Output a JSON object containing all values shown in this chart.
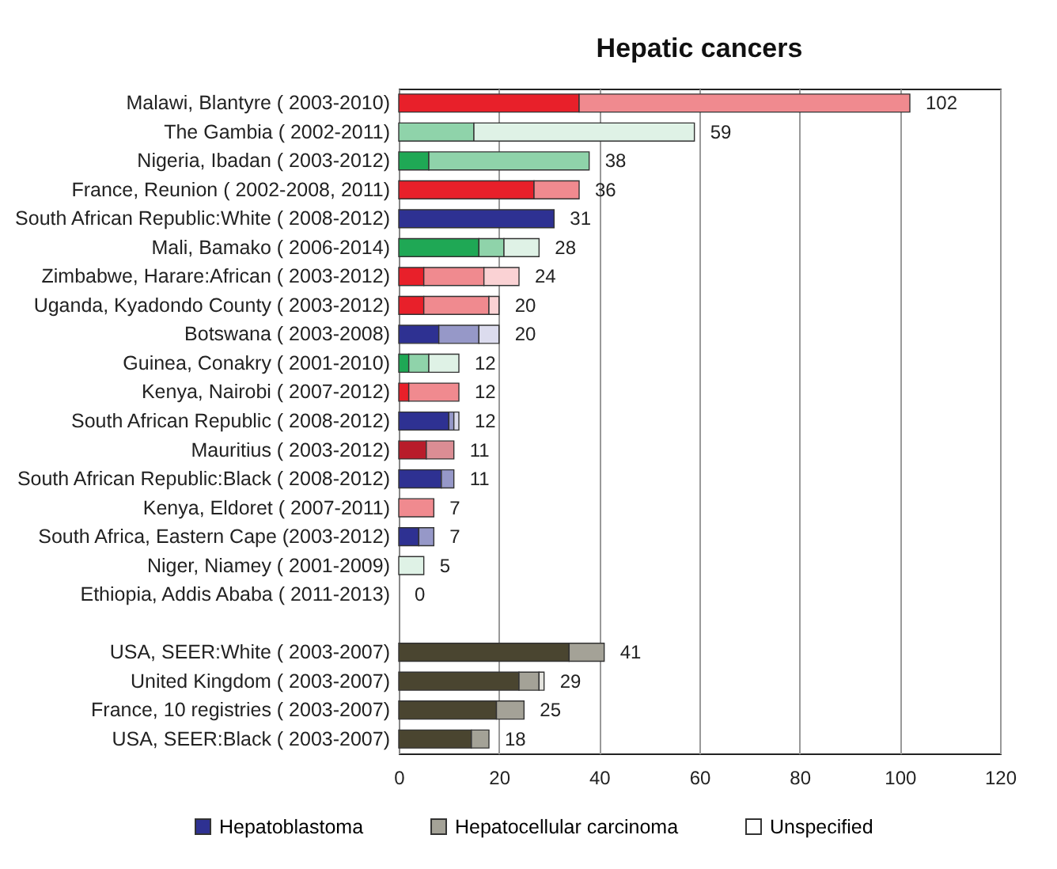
{
  "chart_data": {
    "type": "bar",
    "orientation": "horizontal",
    "stacked": true,
    "title": "Hepatic cancers",
    "categories": [
      "Malawi, Blantyre ( 2003-2010)",
      "The Gambia ( 2002-2011)",
      "Nigeria, Ibadan ( 2003-2012)",
      "France, Reunion ( 2002-2008,  2011)",
      "South African Republic:White ( 2008-2012)",
      "Mali, Bamako ( 2006-2014)",
      "Zimbabwe, Harare:African ( 2003-2012)",
      "Uganda, Kyadondo County ( 2003-2012)",
      "Botswana ( 2003-2008)",
      "Guinea, Conakry ( 2001-2010)",
      "Kenya, Nairobi ( 2007-2012)",
      "South African Republic ( 2008-2012)",
      "Mauritius ( 2003-2012)",
      "South African Republic:Black ( 2008-2012)",
      "Kenya, Eldoret ( 2007-2011)",
      "South Africa, Eastern Cape (2003-2012)",
      "Niger, Niamey ( 2001-2009)",
      "Ethiopia, Addis Ababa ( 2011-2013)",
      null,
      "USA, SEER:White ( 2003-2007)",
      "United Kingdom ( 2003-2007)",
      "France, 10 registries ( 2003-2007)",
      "USA, SEER:Black ( 2003-2007)"
    ],
    "series": [
      {
        "name": "Hepatoblastoma",
        "color": "#2e3192",
        "colors": [
          "#e8202a",
          null,
          "#1fa855",
          "#e8202a",
          "#2e3192",
          "#1fa855",
          "#e8202a",
          "#e8202a",
          "#2e3192",
          "#1fa855",
          "#e8202a",
          "#2e3192",
          "#b81c2a",
          "#2e3192",
          null,
          "#2e3192",
          null,
          null,
          null,
          "#4a4530",
          "#4a4530",
          "#4a4530",
          "#4a4530"
        ],
        "values": [
          36,
          0,
          6,
          27,
          31,
          16,
          5,
          5,
          8,
          2,
          2,
          10,
          5.5,
          8.5,
          0,
          4,
          0,
          0,
          null,
          34,
          24,
          19.5,
          14.5
        ]
      },
      {
        "name": "Hepatocellular carcinoma",
        "color": "#a4a297",
        "colors": [
          "#f08a8f",
          "#8fd3aa",
          "#8fd3aa",
          "#f08a8f",
          null,
          "#8fd3aa",
          "#f08a8f",
          "#f08a8f",
          "#9698c8",
          "#8fd3aa",
          "#f08a8f",
          "#9698c8",
          "#db8d94",
          "#9698c8",
          "#f08a8f",
          "#9698c8",
          null,
          null,
          null,
          "#a4a297",
          "#a4a297",
          "#a4a297",
          "#a4a297"
        ],
        "values": [
          66,
          15,
          32,
          9,
          0,
          5,
          12,
          13,
          8,
          4,
          10,
          1,
          5.5,
          2.5,
          7,
          3,
          0,
          0,
          null,
          7,
          4,
          5.5,
          3.5
        ]
      },
      {
        "name": "Unspecified",
        "color": "#ffffff",
        "colors": [
          null,
          "#dff2e6",
          null,
          null,
          null,
          "#dff2e6",
          "#fad2d4",
          "#fad2d4",
          "#dcdcee",
          "#dff2e6",
          null,
          "#dcdcee",
          null,
          null,
          null,
          null,
          "#dff2e6",
          null,
          null,
          null,
          "#e4e3de",
          null,
          null
        ],
        "values": [
          0,
          44,
          0,
          0,
          0,
          7,
          7,
          2,
          4,
          6,
          0,
          1,
          0,
          0,
          0,
          0,
          5,
          0,
          null,
          0,
          1,
          0,
          0
        ]
      }
    ],
    "totals": [
      "102",
      "59",
      "38",
      "36",
      "31",
      "28",
      "24",
      "20",
      "20",
      "12",
      "12",
      "12",
      "11",
      "11",
      "7",
      "7",
      "5",
      "0",
      null,
      "41",
      "29",
      "25",
      "18"
    ],
    "xlim": [
      0,
      120
    ],
    "xticks": [
      0,
      20,
      40,
      60,
      80,
      100,
      120
    ],
    "grid": "x",
    "legend": "bottom"
  }
}
